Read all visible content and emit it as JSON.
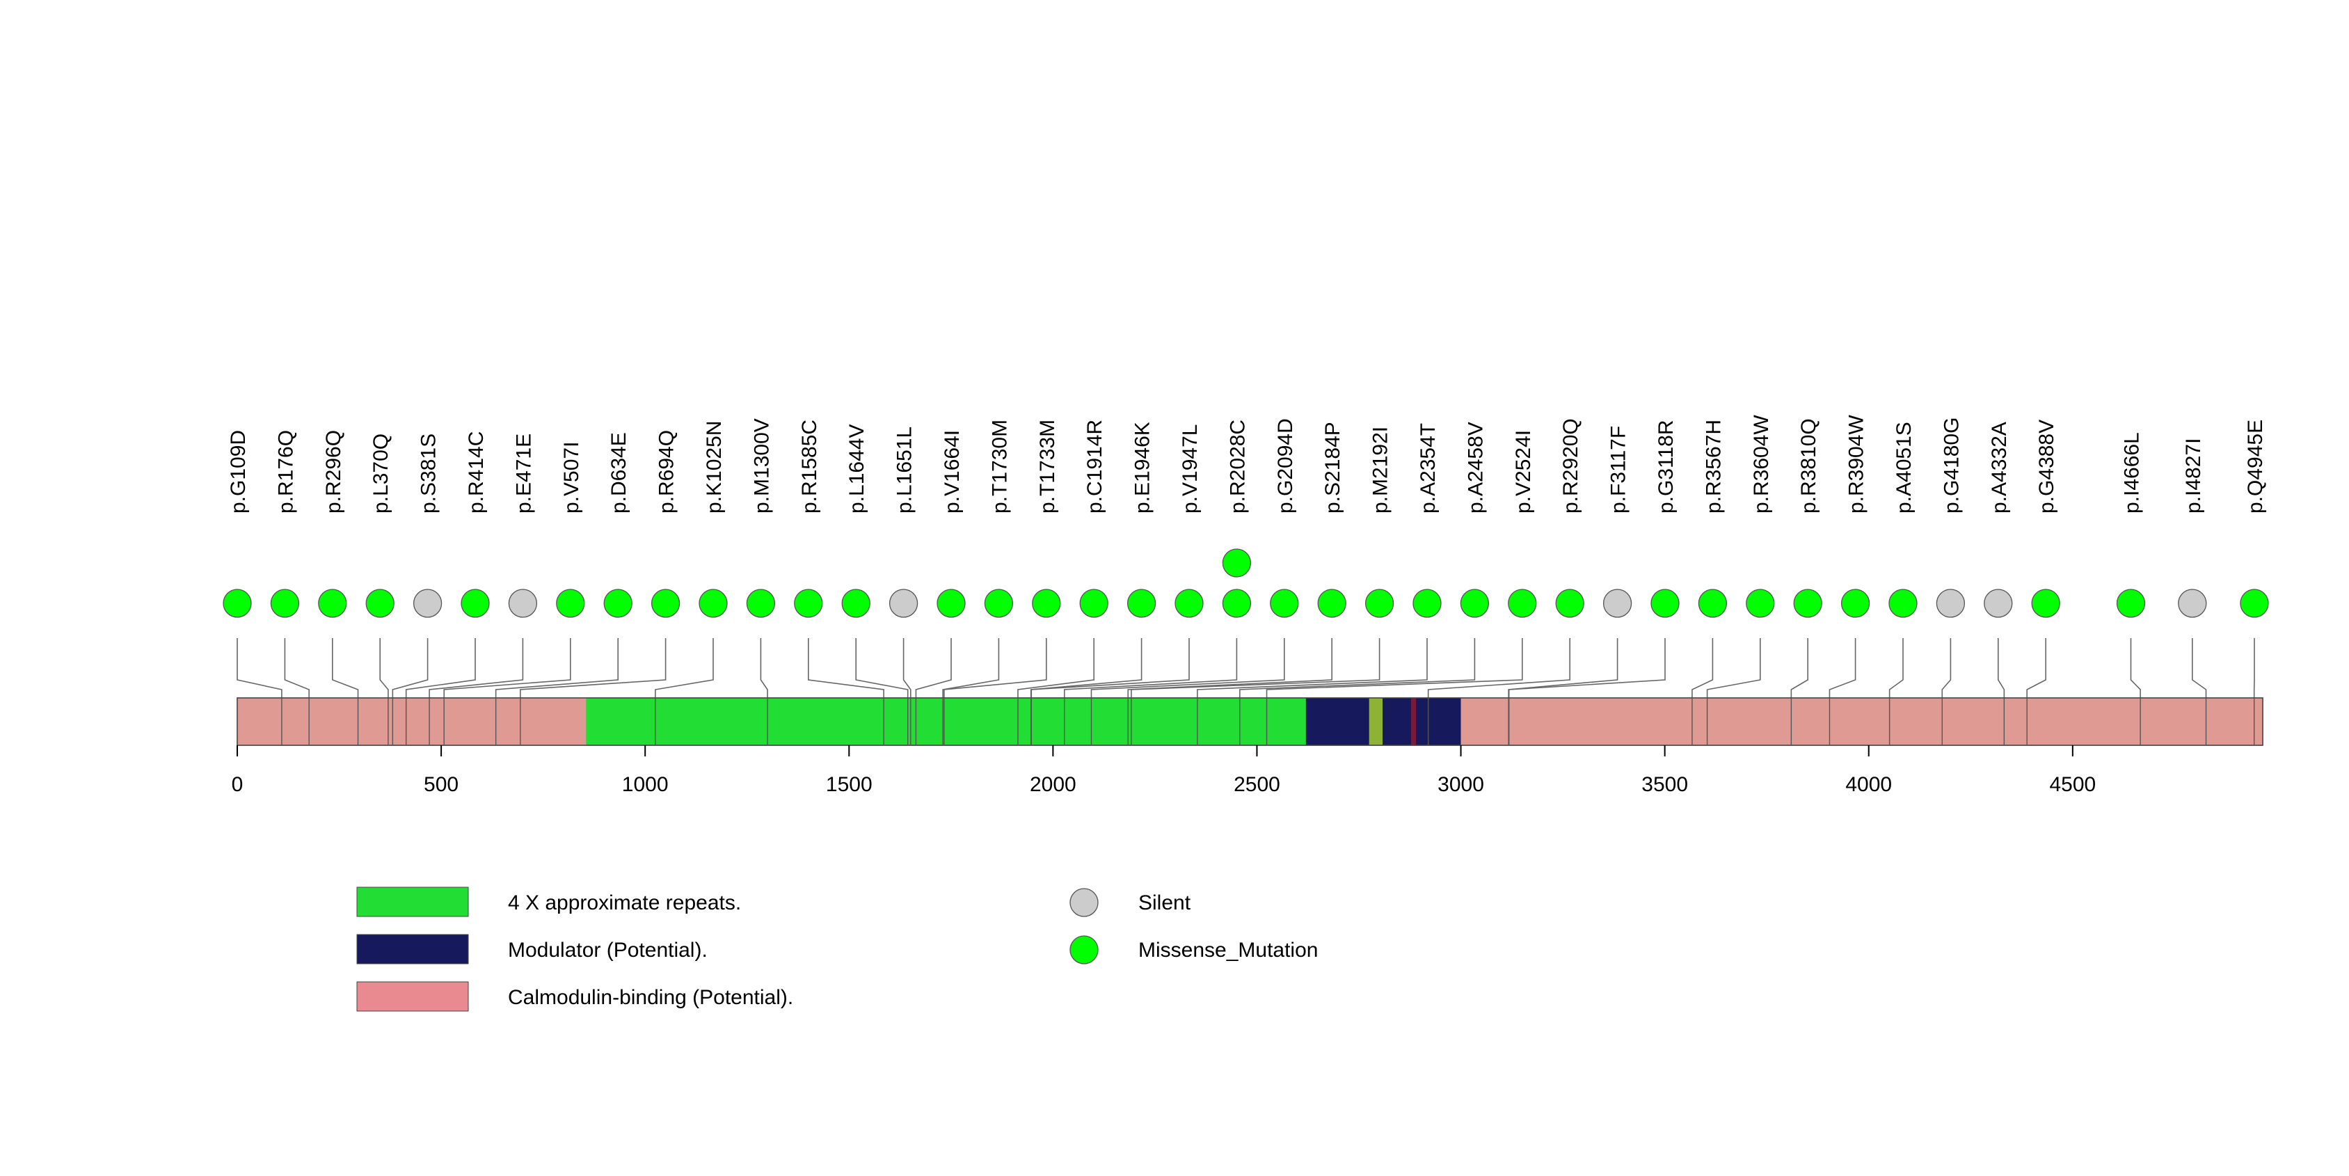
{
  "chart_data": {
    "type": "lollipop",
    "protein_length": 4966,
    "x_axis": {
      "ticks": [
        0,
        500,
        1000,
        1500,
        2000,
        2500,
        3000,
        3500,
        4000,
        4500
      ],
      "range": [
        0,
        4966
      ]
    },
    "domains": [
      {
        "name": "4 X approximate repeats.",
        "start": 855,
        "end": 2620,
        "color": "#22DD33"
      },
      {
        "name": "Modulator (Potential).",
        "start": 2620,
        "end": 3000,
        "color": "#161A5C"
      },
      {
        "name": "Calmodulin-binding (Potential).",
        "start": 0,
        "end": 855,
        "color": "#E09A94"
      },
      {
        "name": "Calmodulin-binding (Potential).",
        "start": 3000,
        "end": 4966,
        "color": "#E09A94"
      },
      {
        "name": "",
        "start": 2775,
        "end": 2808,
        "color": "#8DB236"
      },
      {
        "name": "",
        "start": 2878,
        "end": 2890,
        "color": "#7A1A3A"
      }
    ],
    "legend": {
      "regions": [
        {
          "label": "4 X approximate repeats.",
          "color": "#22DD33"
        },
        {
          "label": "Modulator (Potential).",
          "color": "#161A5C"
        },
        {
          "label": "Calmodulin-binding (Potential).",
          "color": "#E98A91"
        }
      ],
      "mutation_types": [
        {
          "label": "Silent",
          "color": "#CCCCCC"
        },
        {
          "label": "Missense_Mutation",
          "color": "#00FF00"
        }
      ]
    },
    "mutations": [
      {
        "label": "p.G109D",
        "position": 109,
        "type": "Missense_Mutation",
        "count": 1
      },
      {
        "label": "p.R176Q",
        "position": 176,
        "type": "Missense_Mutation",
        "count": 1
      },
      {
        "label": "p.R296Q",
        "position": 296,
        "type": "Missense_Mutation",
        "count": 1
      },
      {
        "label": "p.L370Q",
        "position": 370,
        "type": "Missense_Mutation",
        "count": 1
      },
      {
        "label": "p.S381S",
        "position": 381,
        "type": "Silent",
        "count": 1
      },
      {
        "label": "p.R414C",
        "position": 414,
        "type": "Missense_Mutation",
        "count": 1
      },
      {
        "label": "p.E471E",
        "position": 471,
        "type": "Silent",
        "count": 1
      },
      {
        "label": "p.V507I",
        "position": 507,
        "type": "Missense_Mutation",
        "count": 1
      },
      {
        "label": "p.D634E",
        "position": 634,
        "type": "Missense_Mutation",
        "count": 1
      },
      {
        "label": "p.R694Q",
        "position": 694,
        "type": "Missense_Mutation",
        "count": 1
      },
      {
        "label": "p.K1025N",
        "position": 1025,
        "type": "Missense_Mutation",
        "count": 1
      },
      {
        "label": "p.M1300V",
        "position": 1300,
        "type": "Missense_Mutation",
        "count": 1
      },
      {
        "label": "p.R1585C",
        "position": 1585,
        "type": "Missense_Mutation",
        "count": 1
      },
      {
        "label": "p.L1644V",
        "position": 1644,
        "type": "Missense_Mutation",
        "count": 1
      },
      {
        "label": "p.L1651L",
        "position": 1651,
        "type": "Silent",
        "count": 1
      },
      {
        "label": "p.V1664I",
        "position": 1664,
        "type": "Missense_Mutation",
        "count": 1
      },
      {
        "label": "p.T1730M",
        "position": 1730,
        "type": "Missense_Mutation",
        "count": 1
      },
      {
        "label": "p.T1733M",
        "position": 1733,
        "type": "Missense_Mutation",
        "count": 1
      },
      {
        "label": "p.C1914R",
        "position": 1914,
        "type": "Missense_Mutation",
        "count": 1
      },
      {
        "label": "p.E1946K",
        "position": 1946,
        "type": "Missense_Mutation",
        "count": 1
      },
      {
        "label": "p.V1947L",
        "position": 1947,
        "type": "Missense_Mutation",
        "count": 1
      },
      {
        "label": "p.R2028C",
        "position": 2028,
        "type": "Missense_Mutation",
        "count": 2
      },
      {
        "label": "p.G2094D",
        "position": 2094,
        "type": "Missense_Mutation",
        "count": 1
      },
      {
        "label": "p.S2184P",
        "position": 2184,
        "type": "Missense_Mutation",
        "count": 1
      },
      {
        "label": "p.M2192I",
        "position": 2192,
        "type": "Missense_Mutation",
        "count": 1
      },
      {
        "label": "p.A2354T",
        "position": 2354,
        "type": "Missense_Mutation",
        "count": 1
      },
      {
        "label": "p.A2458V",
        "position": 2458,
        "type": "Missense_Mutation",
        "count": 1
      },
      {
        "label": "p.V2524I",
        "position": 2524,
        "type": "Missense_Mutation",
        "count": 1
      },
      {
        "label": "p.R2920Q",
        "position": 2920,
        "type": "Missense_Mutation",
        "count": 1
      },
      {
        "label": "p.F3117F",
        "position": 3117,
        "type": "Silent",
        "count": 1
      },
      {
        "label": "p.G3118R",
        "position": 3118,
        "type": "Missense_Mutation",
        "count": 1
      },
      {
        "label": "p.R3567H",
        "position": 3567,
        "type": "Missense_Mutation",
        "count": 1
      },
      {
        "label": "p.R3604W",
        "position": 3604,
        "type": "Missense_Mutation",
        "count": 1
      },
      {
        "label": "p.R3810Q",
        "position": 3810,
        "type": "Missense_Mutation",
        "count": 1
      },
      {
        "label": "p.R3904W",
        "position": 3904,
        "type": "Missense_Mutation",
        "count": 1
      },
      {
        "label": "p.A4051S",
        "position": 4051,
        "type": "Missense_Mutation",
        "count": 1
      },
      {
        "label": "p.G4180G",
        "position": 4180,
        "type": "Silent",
        "count": 1
      },
      {
        "label": "p.A4332A",
        "position": 4332,
        "type": "Silent",
        "count": 1
      },
      {
        "label": "p.G4388V",
        "position": 4388,
        "type": "Missense_Mutation",
        "count": 1
      },
      {
        "label": "p.I4666L",
        "position": 4666,
        "type": "Missense_Mutation",
        "count": 1
      },
      {
        "label": "p.I4827I",
        "position": 4827,
        "type": "Silent",
        "count": 1
      },
      {
        "label": "p.Q4945E",
        "position": 4945,
        "type": "Missense_Mutation",
        "count": 1
      }
    ]
  }
}
